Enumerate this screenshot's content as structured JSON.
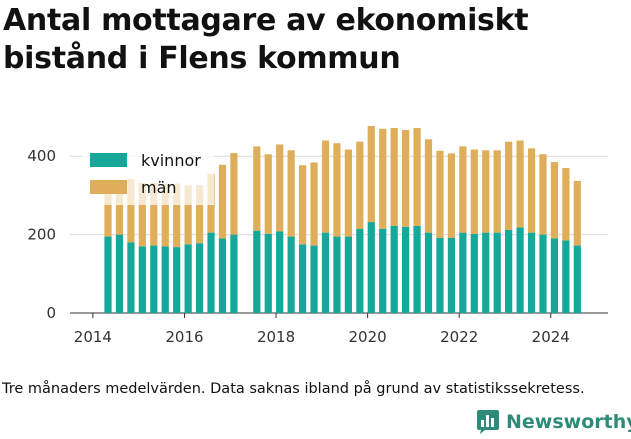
{
  "chart_data": {
    "type": "bar",
    "stacked": true,
    "title": "Antal mottagare av ekonomiskt bistånd i Flens kommun",
    "caption": "Tre månaders medelvärden. Data saknas ibland på grund av statistikssekretess.",
    "x_ticks": [
      "2014",
      "2016",
      "2018",
      "2020",
      "2022",
      "2024"
    ],
    "y_ticks": [
      "0",
      "200",
      "400"
    ],
    "ylim": [
      0,
      500
    ],
    "xlim": [
      2013.5,
      2025.25
    ],
    "grid": true,
    "legend": "top-left",
    "x": [
      2014.33,
      2014.58,
      2014.83,
      2015.08,
      2015.33,
      2015.58,
      2015.83,
      2016.08,
      2016.33,
      2016.58,
      2016.83,
      2017.08,
      2017.58,
      2017.83,
      2018.08,
      2018.33,
      2018.58,
      2018.83,
      2019.08,
      2019.33,
      2019.58,
      2019.83,
      2020.08,
      2020.33,
      2020.58,
      2020.83,
      2021.08,
      2021.33,
      2021.58,
      2021.83,
      2022.08,
      2022.33,
      2022.58,
      2022.83,
      2023.08,
      2023.33,
      2023.58,
      2023.83,
      2024.08,
      2024.33,
      2024.58
    ],
    "series": [
      {
        "name": "kvinnor",
        "color": "#14a79a",
        "values": [
          195,
          200,
          180,
          170,
          172,
          170,
          168,
          175,
          178,
          205,
          190,
          200,
          210,
          202,
          208,
          195,
          175,
          172,
          205,
          195,
          195,
          215,
          232,
          215,
          222,
          220,
          222,
          205,
          192,
          192,
          205,
          202,
          205,
          205,
          212,
          218,
          205,
          200,
          190,
          185,
          172
        ]
      },
      {
        "name": "män",
        "color": "#deae5a",
        "values": [
          130,
          125,
          162,
          162,
          160,
          160,
          162,
          150,
          148,
          150,
          188,
          208,
          215,
          203,
          222,
          220,
          202,
          212,
          235,
          238,
          222,
          222,
          245,
          255,
          250,
          247,
          250,
          238,
          222,
          215,
          220,
          215,
          210,
          210,
          225,
          222,
          215,
          205,
          195,
          185,
          165
        ]
      }
    ]
  },
  "brand": {
    "name": "Newsworthy",
    "icon": "bar-chart-logo-icon"
  }
}
